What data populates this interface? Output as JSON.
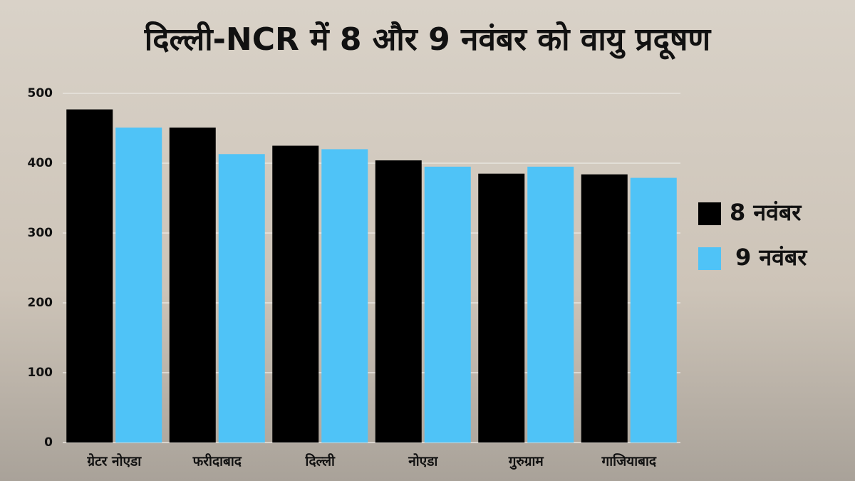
{
  "chart_data": {
    "type": "bar",
    "title": "दिल्ली-NCR में 8 और 9 नवंबर को वायु प्रदूषण",
    "categories": [
      "ग्रेटर नोएडा",
      "फरीदाबाद",
      "दिल्ली",
      "नोएडा",
      "गुरुग्राम",
      "गाजियाबाद"
    ],
    "series": [
      {
        "name": "8 नवंबर",
        "color": "#000000",
        "values": [
          477,
          451,
          425,
          404,
          385,
          384
        ]
      },
      {
        "name": "9 नवंबर",
        "color": "#4fc3f7",
        "values": [
          451,
          413,
          420,
          395,
          395,
          379
        ]
      }
    ],
    "ylim": [
      0,
      500
    ],
    "yticks": [
      0,
      100,
      200,
      300,
      400,
      500
    ],
    "grid": true,
    "legend": "right"
  }
}
